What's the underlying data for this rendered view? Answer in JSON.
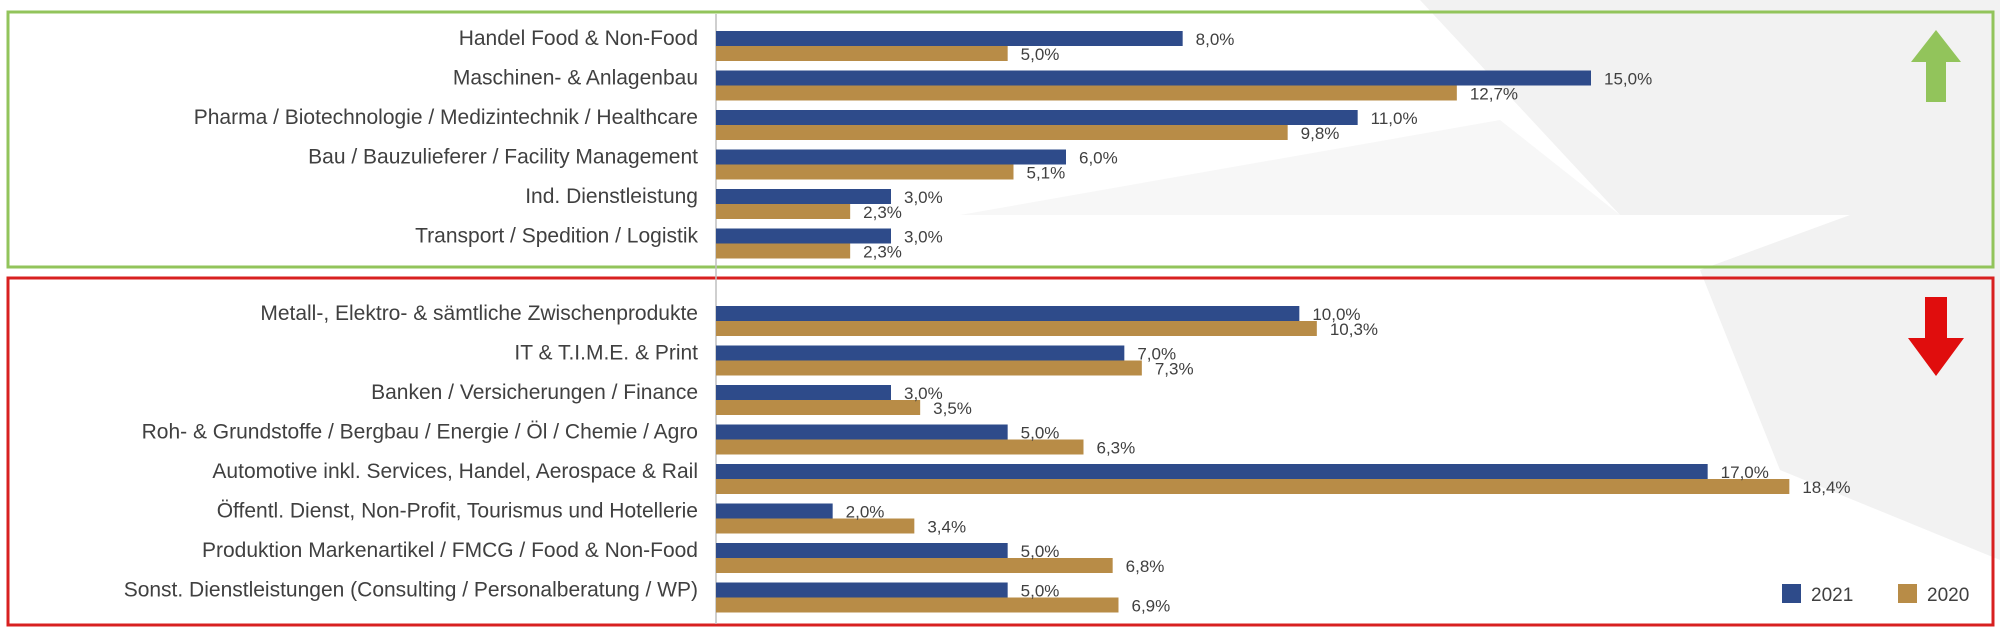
{
  "colors": {
    "s2021": "#2e4b8a",
    "s2020": "#b88c47",
    "top_frame": "#92c45b",
    "bottom_frame": "#d82020",
    "up_arrow": "#92c45b",
    "down_arrow": "#e00d0d"
  },
  "icons": {
    "top_group": "up-arrow-icon",
    "bottom_group": "down-arrow-icon"
  },
  "chart_data": {
    "type": "bar",
    "orientation": "horizontal",
    "xlim": [
      0,
      20
    ],
    "grid": false,
    "legend_position": "bottom-right",
    "series_names": [
      "2021",
      "2020"
    ],
    "groups": [
      {
        "id": "top",
        "categories": [
          {
            "label": "Handel Food & Non-Food",
            "v2021": 8.0,
            "v2020": 5.0,
            "l2021": "8,0%",
            "l2020": "5,0%"
          },
          {
            "label": "Maschinen- & Anlagenbau",
            "v2021": 15.0,
            "v2020": 12.7,
            "l2021": "15,0%",
            "l2020": "12,7%"
          },
          {
            "label": "Pharma / Biotechnologie / Medizintechnik / Healthcare",
            "v2021": 11.0,
            "v2020": 9.8,
            "l2021": "11,0%",
            "l2020": "9,8%"
          },
          {
            "label": "Bau / Bauzulieferer / Facility Management",
            "v2021": 6.0,
            "v2020": 5.1,
            "l2021": "6,0%",
            "l2020": "5,1%"
          },
          {
            "label": "Ind. Dienstleistung",
            "v2021": 3.0,
            "v2020": 2.3,
            "l2021": "3,0%",
            "l2020": "2,3%"
          },
          {
            "label": "Transport / Spedition / Logistik",
            "v2021": 3.0,
            "v2020": 2.3,
            "l2021": "3,0%",
            "l2020": "2,3%"
          }
        ]
      },
      {
        "id": "bottom",
        "categories": [
          {
            "label": "Metall-, Elektro- & sämtliche Zwischenprodukte",
            "v2021": 10.0,
            "v2020": 10.3,
            "l2021": "10,0%",
            "l2020": "10,3%"
          },
          {
            "label": "IT & T.I.M.E. & Print",
            "v2021": 7.0,
            "v2020": 7.3,
            "l2021": "7,0%",
            "l2020": "7,3%"
          },
          {
            "label": "Banken / Versicherungen / Finance",
            "v2021": 3.0,
            "v2020": 3.5,
            "l2021": "3,0%",
            "l2020": "3,5%"
          },
          {
            "label": "Roh- & Grundstoffe / Bergbau / Energie / Öl / Chemie / Agro",
            "v2021": 5.0,
            "v2020": 6.3,
            "l2021": "5,0%",
            "l2020": "6,3%"
          },
          {
            "label": "Automotive inkl. Services, Handel, Aerospace & Rail",
            "v2021": 17.0,
            "v2020": 18.4,
            "l2021": "17,0%",
            "l2020": "18,4%"
          },
          {
            "label": "Öffentl. Dienst, Non-Profit, Tourismus und Hotellerie",
            "v2021": 2.0,
            "v2020": 3.4,
            "l2021": "2,0%",
            "l2020": "3,4%"
          },
          {
            "label": "Produktion Markenartikel / FMCG / Food & Non-Food",
            "v2021": 5.0,
            "v2020": 6.8,
            "l2021": "5,0%",
            "l2020": "6,8%"
          },
          {
            "label": "Sonst. Dienstleistungen (Consulting / Personalberatung / WP)",
            "v2021": 5.0,
            "v2020": 6.9,
            "l2021": "5,0%",
            "l2020": "6,9%"
          }
        ]
      }
    ]
  }
}
